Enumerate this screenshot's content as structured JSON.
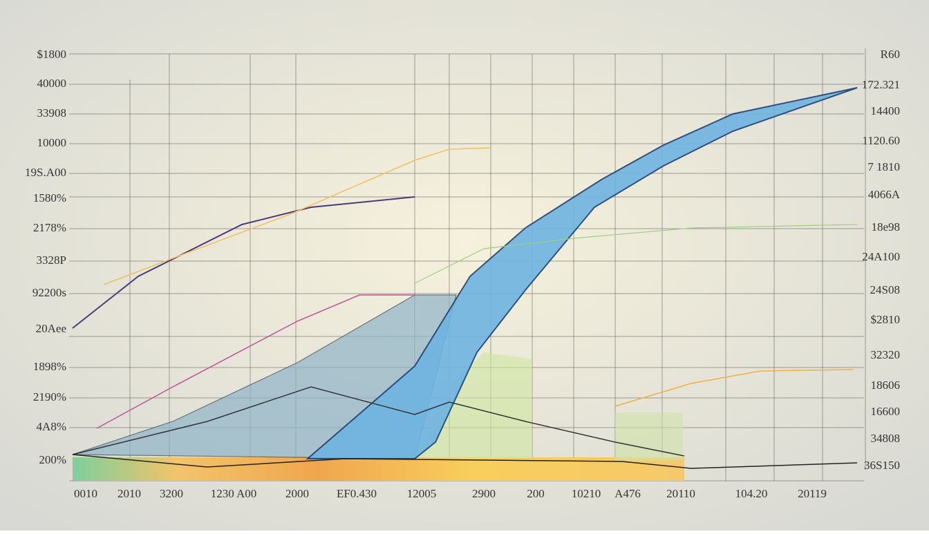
{
  "left_labels": [
    "$1800",
    "40000",
    "33908",
    "10000",
    "19S.A00",
    "1580%",
    "2178%",
    "3328P",
    "92200s",
    "20Aee",
    "1898%",
    "2190%",
    "4A8%",
    "200%"
  ],
  "right_labels": [
    "R60",
    "172.321",
    "14400",
    "1120.60",
    "7 1810",
    "4066A",
    "18e98",
    "24A100",
    "24S08",
    "$2810",
    "32320",
    "18606",
    "16600",
    "34808",
    "36S150"
  ],
  "bottom_labels": [
    "0010",
    "2010",
    "3200",
    "1230 A00",
    "2000",
    "EF0.430",
    "12005",
    "2900",
    "200",
    "10210",
    "A476",
    "20110",
    "104.20",
    "20119"
  ]
}
